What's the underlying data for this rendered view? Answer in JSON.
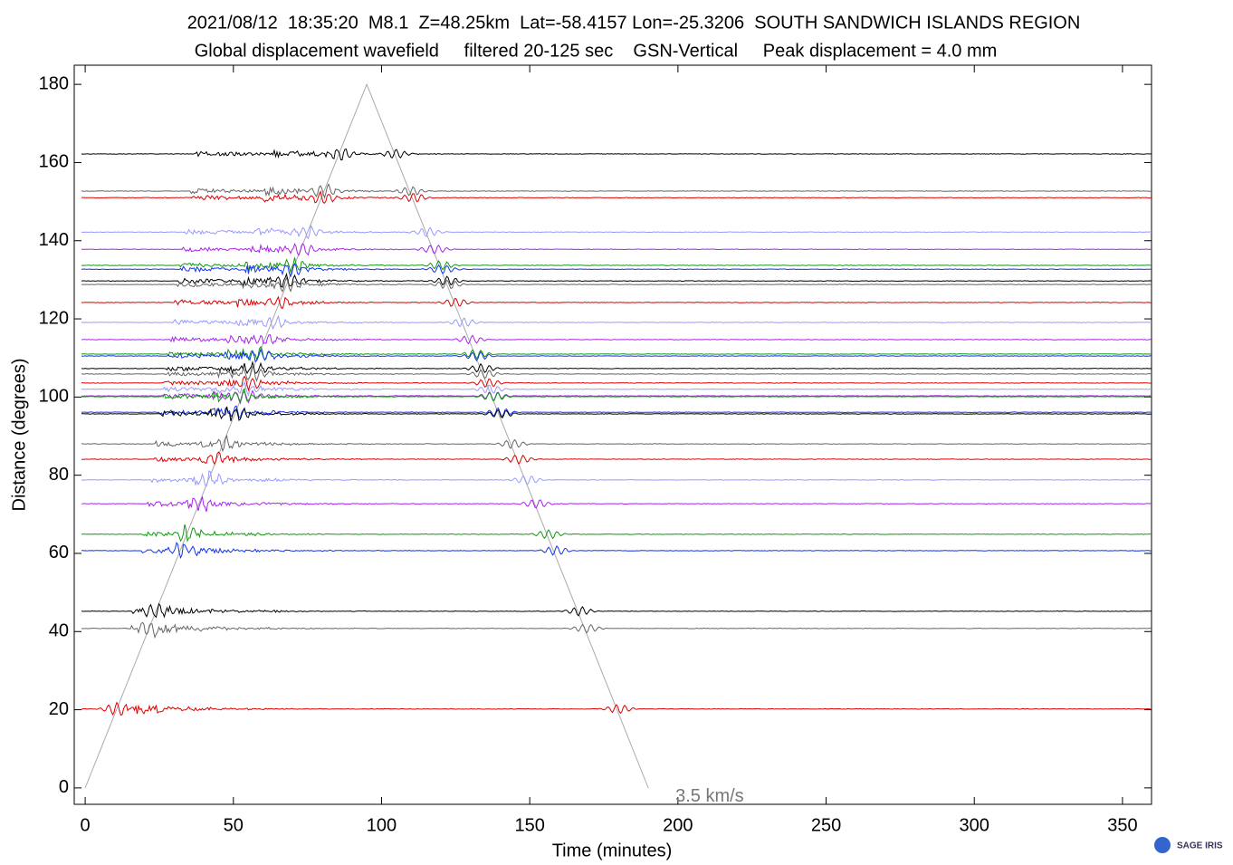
{
  "chart_data": {
    "type": "record-section",
    "title": "2021/08/12  18:35:20  M8.1  Z=48.25km  Lat=-58.4157 Lon=-25.3206  SOUTH SANDWICH ISLANDS REGION",
    "subtitle": "Global displacement wavefield     filtered 20-125 sec    GSN-Vertical     Peak displacement = 4.0 mm",
    "x_label": "Time (minutes)",
    "y_label": "Distance (degrees)",
    "xlim": [
      -3.7,
      359.8
    ],
    "xticks": [
      0,
      50,
      100,
      150,
      200,
      250,
      300,
      350
    ],
    "ylim": [
      -4.2,
      184.9
    ],
    "yticks": [
      0,
      20,
      40,
      60,
      80,
      100,
      120,
      140,
      160,
      180
    ],
    "grid": false,
    "series": [
      {
        "name": null,
        "color": "#000000",
        "values": [
          162.2
        ]
      },
      {
        "name": null,
        "color": "#666666",
        "values": [
          152.7
        ]
      },
      {
        "name": null,
        "color": "#dd0000",
        "values": [
          151.0
        ]
      },
      {
        "name": null,
        "color": "#9999ff",
        "values": [
          142.2
        ]
      },
      {
        "name": null,
        "color": "#aa22ee",
        "values": [
          137.8
        ]
      },
      {
        "name": null,
        "color": "#119911",
        "values": [
          133.7
        ]
      },
      {
        "name": null,
        "color": "#1133ee",
        "values": [
          132.7
        ]
      },
      {
        "name": null,
        "color": "#000000",
        "values": [
          129.7
        ]
      },
      {
        "name": null,
        "color": "#666666",
        "values": [
          128.8
        ]
      },
      {
        "name": null,
        "color": "#dd0000",
        "values": [
          124.2
        ]
      },
      {
        "name": null,
        "color": "#9999ff",
        "values": [
          119.1
        ]
      },
      {
        "name": null,
        "color": "#aa22ee",
        "values": [
          114.7
        ]
      },
      {
        "name": null,
        "color": "#119911",
        "values": [
          111.0
        ]
      },
      {
        "name": null,
        "color": "#1133ee",
        "values": [
          110.5
        ]
      },
      {
        "name": null,
        "color": "#000000",
        "values": [
          107.3
        ]
      },
      {
        "name": null,
        "color": "#666666",
        "values": [
          105.9
        ]
      },
      {
        "name": null,
        "color": "#dd0000",
        "values": [
          103.6
        ]
      },
      {
        "name": null,
        "color": "#9999ff",
        "values": [
          102.0
        ]
      },
      {
        "name": null,
        "color": "#aa22ee",
        "values": [
          100.3
        ]
      },
      {
        "name": null,
        "color": "#119911",
        "values": [
          100.1
        ]
      },
      {
        "name": null,
        "color": "#1133ee",
        "values": [
          96.1
        ]
      },
      {
        "name": null,
        "color": "#000000",
        "values": [
          95.7
        ]
      },
      {
        "name": null,
        "color": "#666666",
        "values": [
          88.0
        ]
      },
      {
        "name": null,
        "color": "#dd0000",
        "values": [
          84.1
        ]
      },
      {
        "name": null,
        "color": "#9999ff",
        "values": [
          78.8
        ]
      },
      {
        "name": null,
        "color": "#aa22ee",
        "values": [
          72.7
        ]
      },
      {
        "name": null,
        "color": "#119911",
        "values": [
          64.9
        ]
      },
      {
        "name": null,
        "color": "#1133ee",
        "values": [
          60.7
        ]
      },
      {
        "name": null,
        "color": "#000000",
        "values": [
          45.2
        ]
      },
      {
        "name": null,
        "color": "#666666",
        "values": [
          40.8
        ]
      },
      {
        "name": null,
        "color": "#dd0000",
        "values": [
          20.2
        ]
      }
    ],
    "reference_line": {
      "label": "3.5 km/s",
      "color": "#aaaaaa",
      "x": [
        0,
        95,
        190
      ],
      "y": [
        0,
        180,
        0
      ]
    },
    "logo": "SAGE IRIS"
  }
}
